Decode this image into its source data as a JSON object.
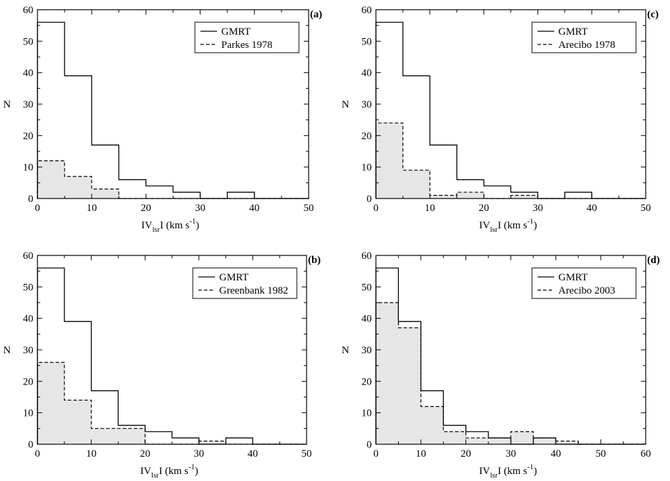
{
  "chart_data": [
    {
      "type": "histogram",
      "panel_label": "(a)",
      "xlabel": {
        "main": "IV",
        "sub": "lsr",
        "mid": "I (km s",
        "sup": "-1",
        "end": ")"
      },
      "ylabel": "N",
      "xlim": [
        0,
        50
      ],
      "ylim": [
        0,
        60
      ],
      "xticks": [
        "0",
        "10",
        "20",
        "30",
        "40",
        "50"
      ],
      "yticks": [
        "0",
        "10",
        "20",
        "30",
        "40",
        "50",
        "60"
      ],
      "bin_edges": [
        0,
        5,
        10,
        15,
        20,
        25,
        30,
        35,
        40,
        45,
        50
      ],
      "series": [
        {
          "name": "GMRT",
          "style": "solid",
          "values": [
            56,
            39,
            17,
            6,
            4,
            2,
            0,
            2,
            0,
            0
          ]
        },
        {
          "name": "Parkes 1978",
          "style": "dashed",
          "filled": true,
          "values": [
            12,
            7,
            3,
            0,
            0,
            0,
            0,
            0,
            0,
            0
          ]
        }
      ]
    },
    {
      "type": "histogram",
      "panel_label": "(c)",
      "xlabel": {
        "main": "IV",
        "sub": "lsr",
        "mid": "I (km s",
        "sup": "-1",
        "end": ")"
      },
      "ylabel": "N",
      "xlim": [
        0,
        50
      ],
      "ylim": [
        0,
        60
      ],
      "xticks": [
        "0",
        "10",
        "20",
        "30",
        "40",
        "50"
      ],
      "yticks": [
        "0",
        "10",
        "20",
        "30",
        "40",
        "50",
        "60"
      ],
      "bin_edges": [
        0,
        5,
        10,
        15,
        20,
        25,
        30,
        35,
        40,
        45,
        50
      ],
      "series": [
        {
          "name": "GMRT",
          "style": "solid",
          "values": [
            56,
            39,
            17,
            6,
            4,
            2,
            0,
            2,
            0,
            0
          ]
        },
        {
          "name": "Arecibo 1978",
          "style": "dashed",
          "filled": true,
          "values": [
            24,
            9,
            1,
            2,
            0,
            1,
            0,
            0,
            0,
            0
          ]
        }
      ]
    },
    {
      "type": "histogram",
      "panel_label": "(b)",
      "xlabel": {
        "main": "IV",
        "sub": "lsr",
        "mid": "I (km s",
        "sup": "-1",
        "end": ")"
      },
      "ylabel": "N",
      "xlim": [
        0,
        50
      ],
      "ylim": [
        0,
        60
      ],
      "xticks": [
        "0",
        "10",
        "20",
        "30",
        "40",
        "50"
      ],
      "yticks": [
        "0",
        "10",
        "20",
        "30",
        "40",
        "50",
        "60"
      ],
      "bin_edges": [
        0,
        5,
        10,
        15,
        20,
        25,
        30,
        35,
        40,
        45,
        50
      ],
      "series": [
        {
          "name": "GMRT",
          "style": "solid",
          "values": [
            56,
            39,
            17,
            6,
            4,
            2,
            0,
            2,
            0,
            0
          ]
        },
        {
          "name": "Greenbank 1982",
          "style": "dashed",
          "filled": true,
          "values": [
            26,
            14,
            5,
            5,
            0,
            0,
            1,
            0,
            0,
            0
          ]
        }
      ]
    },
    {
      "type": "histogram",
      "panel_label": "(d)",
      "xlabel": {
        "main": "IV",
        "sub": "lsr",
        "mid": "I (km s",
        "sup": "-1",
        "end": ")"
      },
      "ylabel": "N",
      "xlim": [
        0,
        60
      ],
      "ylim": [
        0,
        60
      ],
      "xticks": [
        "0",
        "10",
        "20",
        "30",
        "40",
        "50",
        "60"
      ],
      "yticks": [
        "0",
        "10",
        "20",
        "30",
        "40",
        "50",
        "60"
      ],
      "bin_edges": [
        0,
        5,
        10,
        15,
        20,
        25,
        30,
        35,
        40,
        45,
        50,
        55,
        60
      ],
      "series": [
        {
          "name": "GMRT",
          "style": "solid",
          "values": [
            56,
            39,
            17,
            6,
            4,
            2,
            0,
            2,
            0,
            0,
            0,
            0
          ]
        },
        {
          "name": "Arecibo 2003",
          "style": "dashed",
          "filled": true,
          "values": [
            45,
            37,
            12,
            4,
            2,
            2,
            4,
            2,
            1,
            0,
            0,
            0
          ]
        }
      ]
    }
  ]
}
